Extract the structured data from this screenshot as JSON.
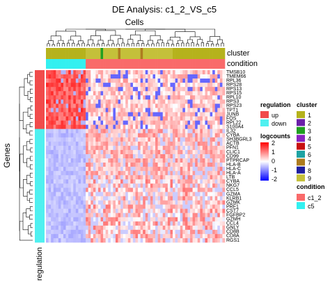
{
  "chart_data": {
    "type": "heatmap",
    "title": "DE Analysis: c1_2_VS_c5",
    "column_axis_label": "Cells",
    "row_axis_label": "Genes",
    "bottom_annotation_label": "regulation",
    "annotation_labels": [
      "cluster",
      "condition"
    ],
    "genes": [
      "TMSB10",
      "TMEM66",
      "RPL36",
      "RPS28",
      "RPS13",
      "RPS15",
      "RPL10",
      "RPS3",
      "RPS23",
      "TPT1",
      "JUNB",
      "FOS",
      "RPL22",
      "S100A4",
      "IL32",
      "CYBA",
      "SH3BGRL3",
      "ACTB",
      "PFN1",
      "CLIC1",
      "CD99",
      "PTPRCAP",
      "HLA-B",
      "HLA-C",
      "HLA-A",
      "LTB",
      "CYBA",
      "NKG7",
      "CCL5",
      "GZMA",
      "KLRB1",
      "GZMK",
      "PRF1",
      "CST7",
      "FGFBP2",
      "GZMH",
      "CCL4",
      "GNLY",
      "CD8B",
      "CD8A",
      "RGS1"
    ],
    "gene_regulation": [
      "up",
      "up",
      "up",
      "up",
      "up",
      "up",
      "up",
      "up",
      "up",
      "up",
      "up",
      "up",
      "up",
      "up",
      "down",
      "down",
      "down",
      "down",
      "down",
      "down",
      "down",
      "down",
      "down",
      "down",
      "down",
      "down",
      "down",
      "down",
      "down",
      "down",
      "down",
      "down",
      "down",
      "down",
      "down",
      "down",
      "down",
      "down",
      "down",
      "down",
      "down"
    ],
    "n_cells": 72,
    "cell_cluster": [
      "1",
      "1",
      "1",
      "1",
      "1",
      "1",
      "1",
      "1",
      "1",
      "1",
      "1",
      "1",
      "1",
      "1",
      "1",
      "1",
      "9",
      "9",
      "9",
      "9",
      "9",
      "9",
      "3",
      "9",
      "9",
      "9",
      "9",
      "9",
      "9",
      "7",
      "9",
      "9",
      "9",
      "9",
      "9",
      "9",
      "9",
      "9",
      "7",
      "9",
      "9",
      "9",
      "9",
      "9",
      "9",
      "9",
      "9",
      "9",
      "9",
      "9",
      "9",
      "1",
      "1",
      "1",
      "1",
      "1",
      "1",
      "1",
      "1",
      "1",
      "1",
      "1",
      "1",
      "1",
      "1",
      "1",
      "1",
      "1",
      "1",
      "1",
      "1",
      "1"
    ],
    "cell_condition": [
      "c5",
      "c5",
      "c5",
      "c5",
      "c5",
      "c5",
      "c5",
      "c5",
      "c5",
      "c5",
      "c5",
      "c5",
      "c5",
      "c5",
      "c5",
      "c5",
      "c1_2",
      "c1_2",
      "c1_2",
      "c1_2",
      "c1_2",
      "c1_2",
      "c1_2",
      "c1_2",
      "c1_2",
      "c1_2",
      "c1_2",
      "c1_2",
      "c1_2",
      "c1_2",
      "c1_2",
      "c1_2",
      "c1_2",
      "c1_2",
      "c1_2",
      "c1_2",
      "c1_2",
      "c1_2",
      "c1_2",
      "c1_2",
      "c1_2",
      "c1_2",
      "c1_2",
      "c1_2",
      "c1_2",
      "c1_2",
      "c1_2",
      "c1_2",
      "c1_2",
      "c1_2",
      "c1_2",
      "c1_2",
      "c1_2",
      "c1_2",
      "c1_2",
      "c1_2",
      "c1_2",
      "c1_2",
      "c1_2",
      "c1_2",
      "c1_2",
      "c1_2",
      "c1_2",
      "c1_2",
      "c1_2",
      "c1_2",
      "c1_2",
      "c1_2",
      "c1_2",
      "c1_2",
      "c1_2",
      "c1_2"
    ],
    "value_range": [
      -2,
      2
    ],
    "legends": {
      "regulation": {
        "title": "regulation",
        "items": [
          {
            "label": "up",
            "color": "#f14b4b"
          },
          {
            "label": "down",
            "color": "#4ff0f0"
          }
        ]
      },
      "logcounts": {
        "title": "logcounts",
        "ticks": [
          "2",
          "1",
          "0",
          "-1",
          "-2"
        ],
        "colors": {
          "high": "#ff0000",
          "mid": "#ffffff",
          "low": "#0000ff"
        }
      },
      "cluster": {
        "title": "cluster",
        "items": [
          {
            "label": "1",
            "color": "#b5b21c"
          },
          {
            "label": "2",
            "color": "#6a1fa8"
          },
          {
            "label": "3",
            "color": "#21a021"
          },
          {
            "label": "4",
            "color": "#8a24c0"
          },
          {
            "label": "5",
            "color": "#c81010"
          },
          {
            "label": "6",
            "color": "#1ea3a3"
          },
          {
            "label": "7",
            "color": "#ad7c1f"
          },
          {
            "label": "8",
            "color": "#1f1fa0"
          },
          {
            "label": "9",
            "color": "#c4c03a"
          }
        ]
      },
      "condition": {
        "title": "condition",
        "items": [
          {
            "label": "c1_2",
            "color": "#f96a6a"
          },
          {
            "label": "c5",
            "color": "#33f0f0"
          }
        ]
      }
    }
  }
}
